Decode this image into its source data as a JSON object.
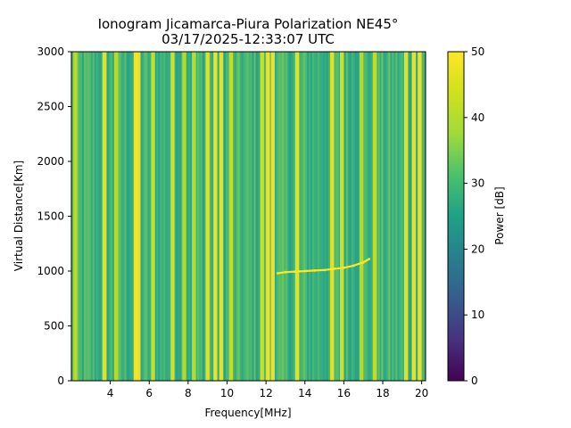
{
  "chart_data": {
    "type": "heatmap",
    "title": "Ionogram Jicamarca-Piura Polarization NE45°",
    "subtitle": "03/17/2025-12:33:07 UTC",
    "xlabel": "Frequency[MHz]",
    "ylabel": "Virtual Distance[Km]",
    "xlim": [
      2.0,
      20.2
    ],
    "ylim": [
      0,
      3000
    ],
    "x_ticks": [
      4,
      6,
      8,
      10,
      12,
      14,
      16,
      18,
      20
    ],
    "y_ticks": [
      0,
      500,
      1000,
      1500,
      2000,
      2500,
      3000
    ],
    "colorbar": {
      "label": "Power [dB]",
      "range": [
        0,
        50
      ],
      "ticks": [
        0,
        10,
        20,
        30,
        40,
        50
      ],
      "colormap": "viridis"
    },
    "background_level_db": 30,
    "interference_bands_mhz": [
      {
        "freq": 2.2,
        "level_db": 42
      },
      {
        "freq": 3.7,
        "level_db": 48
      },
      {
        "freq": 4.3,
        "level_db": 42
      },
      {
        "freq": 5.3,
        "level_db": 50
      },
      {
        "freq": 5.45,
        "level_db": 50
      },
      {
        "freq": 6.2,
        "level_db": 44
      },
      {
        "freq": 7.2,
        "level_db": 46
      },
      {
        "freq": 7.8,
        "level_db": 42
      },
      {
        "freq": 8.3,
        "level_db": 42
      },
      {
        "freq": 9.0,
        "level_db": 48
      },
      {
        "freq": 9.4,
        "level_db": 50
      },
      {
        "freq": 9.7,
        "level_db": 48
      },
      {
        "freq": 10.2,
        "level_db": 44
      },
      {
        "freq": 11.8,
        "level_db": 45
      },
      {
        "freq": 12.1,
        "level_db": 50
      },
      {
        "freq": 12.35,
        "level_db": 50
      },
      {
        "freq": 13.6,
        "level_db": 48
      },
      {
        "freq": 15.4,
        "level_db": 48
      },
      {
        "freq": 15.9,
        "level_db": 46
      },
      {
        "freq": 16.9,
        "level_db": 42
      },
      {
        "freq": 17.6,
        "level_db": 44
      },
      {
        "freq": 19.2,
        "level_db": 48
      },
      {
        "freq": 19.6,
        "level_db": 50
      },
      {
        "freq": 19.9,
        "level_db": 50
      }
    ],
    "echo_trace": {
      "freq_mhz": [
        12.6,
        13.0,
        13.5,
        14.0,
        14.5,
        15.0,
        15.5,
        16.0,
        16.5,
        17.0,
        17.3
      ],
      "distance_km": [
        980,
        990,
        995,
        1000,
        1005,
        1010,
        1020,
        1030,
        1050,
        1080,
        1110
      ],
      "level_db": 50
    }
  }
}
